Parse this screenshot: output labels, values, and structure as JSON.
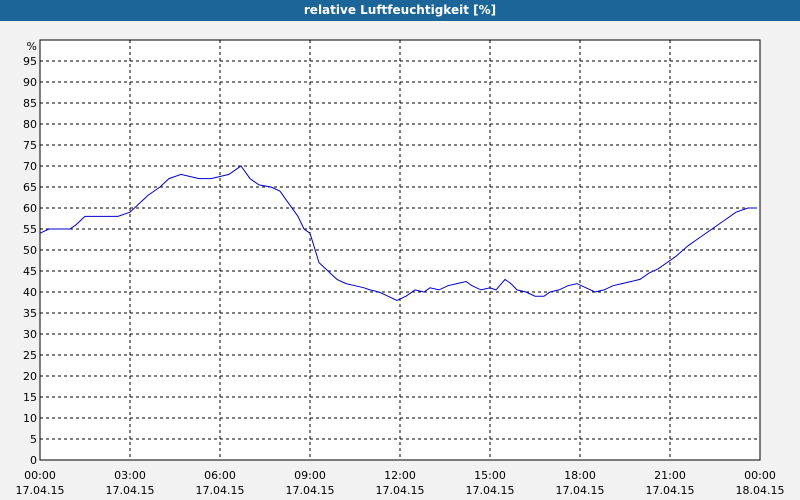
{
  "chart_data": {
    "type": "line",
    "title": "relative Luftfeuchtigkeit [%]",
    "y_unit": "%",
    "xlabel": "",
    "ylabel": "",
    "ylim": [
      0,
      100
    ],
    "y_ticks": [
      0,
      5,
      10,
      15,
      20,
      25,
      30,
      35,
      40,
      45,
      50,
      55,
      60,
      65,
      70,
      75,
      80,
      85,
      90,
      95
    ],
    "x_range_hours": [
      0,
      24
    ],
    "x_ticks": [
      {
        "time": "00:00",
        "date": "17.04.15",
        "hour": 0
      },
      {
        "time": "03:00",
        "date": "17.04.15",
        "hour": 3
      },
      {
        "time": "06:00",
        "date": "17.04.15",
        "hour": 6
      },
      {
        "time": "09:00",
        "date": "17.04.15",
        "hour": 9
      },
      {
        "time": "12:00",
        "date": "17.04.15",
        "hour": 12
      },
      {
        "time": "15:00",
        "date": "17.04.15",
        "hour": 15
      },
      {
        "time": "18:00",
        "date": "17.04.15",
        "hour": 18
      },
      {
        "time": "21:00",
        "date": "17.04.15",
        "hour": 21
      },
      {
        "time": "00:00",
        "date": "18.04.15",
        "hour": 24
      }
    ],
    "grid": true,
    "series": [
      {
        "color": "#0000cc",
        "x": [
          0,
          0.3,
          0.6,
          1.0,
          1.2,
          1.5,
          1.7,
          2.0,
          2.3,
          2.6,
          3.0,
          3.3,
          3.6,
          4.0,
          4.3,
          4.7,
          5.0,
          5.3,
          5.7,
          6.0,
          6.3,
          6.5,
          6.7,
          7.0,
          7.3,
          7.7,
          8.0,
          8.3,
          8.6,
          8.8,
          9.0,
          9.3,
          9.6,
          9.9,
          10.2,
          10.5,
          10.8,
          11.0,
          11.3,
          11.6,
          11.9,
          12.2,
          12.5,
          12.8,
          13.0,
          13.3,
          13.6,
          13.9,
          14.2,
          14.4,
          14.7,
          15.0,
          15.2,
          15.5,
          15.7,
          15.9,
          16.2,
          16.5,
          16.8,
          17.0,
          17.3,
          17.6,
          17.9,
          18.2,
          18.5,
          18.8,
          19.1,
          19.4,
          19.7,
          20.0,
          20.3,
          20.6,
          20.9,
          21.2,
          21.6,
          22.0,
          22.4,
          22.8,
          23.2,
          23.6,
          23.9
        ],
        "values": [
          54,
          55,
          55,
          55,
          56,
          58,
          58,
          58,
          58,
          58,
          59,
          61,
          63,
          65,
          67,
          68,
          67.5,
          67,
          67,
          67.5,
          68,
          69,
          70,
          67,
          65.5,
          65,
          64,
          61,
          58,
          55,
          54,
          47,
          45,
          43,
          42,
          41.5,
          41,
          40.5,
          40,
          39,
          38,
          39,
          40.5,
          40,
          41,
          40.5,
          41.5,
          42,
          42.5,
          41.5,
          40.5,
          41,
          40.5,
          43,
          42,
          40.5,
          40,
          39,
          39,
          40,
          40.5,
          41.5,
          42,
          41,
          40,
          40.5,
          41.5,
          42,
          42.5,
          43,
          44.5,
          45.5,
          47,
          48.5,
          51,
          53,
          55,
          57,
          59,
          60,
          60
        ]
      }
    ]
  }
}
